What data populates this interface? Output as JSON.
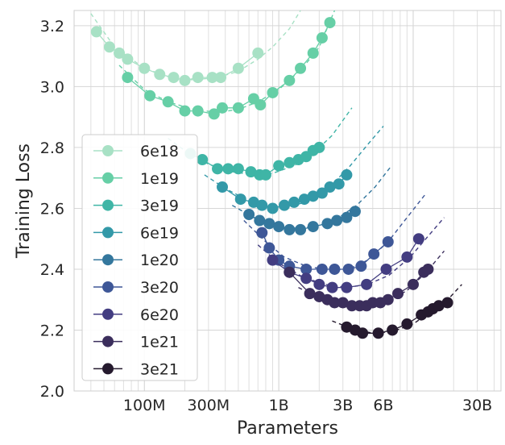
{
  "chart_data": {
    "type": "scatter",
    "xlabel": "Parameters",
    "ylabel": "Training Loss",
    "xscale": "log",
    "xlim": [
      30000000,
      45000000000
    ],
    "ylim": [
      2.0,
      3.25
    ],
    "grid": true,
    "legend_placement": "left",
    "xticks": [
      {
        "value": 100000000,
        "label": "100M"
      },
      {
        "value": 300000000,
        "label": "300M"
      },
      {
        "value": 1000000000,
        "label": "1B"
      },
      {
        "value": 3000000000,
        "label": "3B"
      },
      {
        "value": 6000000000,
        "label": "6B"
      },
      {
        "value": 30000000000,
        "label": "30B"
      }
    ],
    "yticks": [
      {
        "value": 2.0,
        "label": "2.0"
      },
      {
        "value": 2.2,
        "label": "2.2"
      },
      {
        "value": 2.4,
        "label": "2.4"
      },
      {
        "value": 2.6,
        "label": "2.6"
      },
      {
        "value": 2.8,
        "label": "2.8"
      },
      {
        "value": 3.0,
        "label": "3.0"
      },
      {
        "value": 3.2,
        "label": "3.2"
      }
    ],
    "series": [
      {
        "name": "6e18",
        "color": "#a8e1c5",
        "points": [
          [
            44,
            3.18
          ],
          [
            55,
            3.13
          ],
          [
            65,
            3.11
          ],
          [
            75,
            3.09
          ],
          [
            100,
            3.06
          ],
          [
            130,
            3.04
          ],
          [
            165,
            3.03
          ],
          [
            200,
            3.02
          ],
          [
            250,
            3.03
          ],
          [
            320,
            3.03
          ],
          [
            370,
            3.03
          ],
          [
            500,
            3.06
          ],
          [
            700,
            3.11
          ]
        ],
        "fit": [
          [
            40,
            3.24
          ],
          [
            60,
            3.13
          ],
          [
            100,
            3.06
          ],
          [
            150,
            3.033
          ],
          [
            230,
            3.022
          ],
          [
            350,
            3.03
          ],
          [
            500,
            3.05
          ],
          [
            700,
            3.09
          ],
          [
            900,
            3.13
          ],
          [
            1200,
            3.19
          ],
          [
            1450,
            3.25
          ]
        ]
      },
      {
        "name": "1e19",
        "color": "#66cfa6",
        "points": [
          [
            75,
            3.03
          ],
          [
            110,
            2.97
          ],
          [
            150,
            2.95
          ],
          [
            200,
            2.92
          ],
          [
            250,
            2.92
          ],
          [
            330,
            2.91
          ],
          [
            380,
            2.93
          ],
          [
            500,
            2.93
          ],
          [
            650,
            2.96
          ],
          [
            730,
            2.94
          ],
          [
            900,
            2.98
          ],
          [
            1200,
            3.02
          ],
          [
            1450,
            3.06
          ],
          [
            1800,
            3.11
          ],
          [
            2100,
            3.16
          ],
          [
            2400,
            3.21
          ]
        ],
        "fit": [
          [
            65,
            3.07
          ],
          [
            100,
            2.99
          ],
          [
            150,
            2.95
          ],
          [
            230,
            2.925
          ],
          [
            350,
            2.915
          ],
          [
            500,
            2.925
          ],
          [
            700,
            2.95
          ],
          [
            1000,
            2.99
          ],
          [
            1500,
            3.06
          ],
          [
            2000,
            3.13
          ],
          [
            2600,
            3.25
          ]
        ]
      },
      {
        "name": "3e19",
        "color": "#3fb5a6",
        "points": [
          [
            220,
            2.78
          ],
          [
            270,
            2.76
          ],
          [
            350,
            2.73
          ],
          [
            420,
            2.73
          ],
          [
            500,
            2.73
          ],
          [
            620,
            2.72
          ],
          [
            720,
            2.71
          ],
          [
            800,
            2.71
          ],
          [
            1000,
            2.74
          ],
          [
            1200,
            2.75
          ],
          [
            1400,
            2.76
          ],
          [
            1600,
            2.77
          ],
          [
            1800,
            2.79
          ],
          [
            2000,
            2.8
          ]
        ],
        "fit": [
          [
            150,
            2.83
          ],
          [
            200,
            2.79
          ],
          [
            300,
            2.745
          ],
          [
            450,
            2.72
          ],
          [
            650,
            2.71
          ],
          [
            900,
            2.715
          ],
          [
            1300,
            2.74
          ],
          [
            1800,
            2.78
          ],
          [
            2500,
            2.84
          ],
          [
            3500,
            2.93
          ]
        ]
      },
      {
        "name": "6e19",
        "color": "#3399a8",
        "points": [
          [
            380,
            2.67
          ],
          [
            520,
            2.63
          ],
          [
            650,
            2.62
          ],
          [
            750,
            2.61
          ],
          [
            900,
            2.6
          ],
          [
            1100,
            2.61
          ],
          [
            1300,
            2.62
          ],
          [
            1550,
            2.63
          ],
          [
            1800,
            2.64
          ],
          [
            2100,
            2.65
          ],
          [
            2400,
            2.67
          ],
          [
            2800,
            2.68
          ],
          [
            3200,
            2.71
          ]
        ],
        "fit": [
          [
            280,
            2.71
          ],
          [
            400,
            2.665
          ],
          [
            600,
            2.625
          ],
          [
            850,
            2.605
          ],
          [
            1200,
            2.605
          ],
          [
            1700,
            2.625
          ],
          [
            2400,
            2.67
          ],
          [
            3400,
            2.74
          ],
          [
            4600,
            2.81
          ],
          [
            6000,
            2.87
          ]
        ]
      },
      {
        "name": "1e20",
        "color": "#34779d",
        "points": [
          [
            600,
            2.58
          ],
          [
            720,
            2.56
          ],
          [
            850,
            2.55
          ],
          [
            1000,
            2.54
          ],
          [
            1200,
            2.53
          ],
          [
            1450,
            2.53
          ],
          [
            1800,
            2.54
          ],
          [
            2300,
            2.55
          ],
          [
            2700,
            2.56
          ],
          [
            3200,
            2.57
          ],
          [
            3700,
            2.59
          ]
        ],
        "fit": [
          [
            450,
            2.61
          ],
          [
            650,
            2.57
          ],
          [
            900,
            2.545
          ],
          [
            1300,
            2.535
          ],
          [
            1900,
            2.54
          ],
          [
            2700,
            2.565
          ],
          [
            3800,
            2.61
          ],
          [
            5200,
            2.67
          ],
          [
            6900,
            2.74
          ]
        ]
      },
      {
        "name": "3e20",
        "color": "#3e5797",
        "points": [
          [
            750,
            2.52
          ],
          [
            850,
            2.47
          ],
          [
            1000,
            2.43
          ],
          [
            1200,
            2.41
          ],
          [
            1600,
            2.4
          ],
          [
            2100,
            2.4
          ],
          [
            2600,
            2.4
          ],
          [
            3300,
            2.4
          ],
          [
            4100,
            2.41
          ],
          [
            5100,
            2.45
          ],
          [
            6500,
            2.49
          ]
        ],
        "fit": [
          [
            550,
            2.56
          ],
          [
            800,
            2.49
          ],
          [
            1100,
            2.44
          ],
          [
            1600,
            2.41
          ],
          [
            2300,
            2.398
          ],
          [
            3300,
            2.4
          ],
          [
            4600,
            2.43
          ],
          [
            6500,
            2.49
          ],
          [
            9000,
            2.57
          ],
          [
            12500,
            2.65
          ]
        ]
      },
      {
        "name": "6e20",
        "color": "#433d81",
        "points": [
          [
            900,
            2.43
          ],
          [
            1200,
            2.39
          ],
          [
            1600,
            2.37
          ],
          [
            2000,
            2.35
          ],
          [
            2500,
            2.34
          ],
          [
            3200,
            2.34
          ],
          [
            4500,
            2.35
          ],
          [
            6300,
            2.4
          ],
          [
            9000,
            2.44
          ],
          [
            11000,
            2.5
          ]
        ],
        "fit": [
          [
            700,
            2.48
          ],
          [
            1000,
            2.42
          ],
          [
            1500,
            2.375
          ],
          [
            2200,
            2.35
          ],
          [
            3200,
            2.34
          ],
          [
            4600,
            2.35
          ],
          [
            6600,
            2.38
          ],
          [
            9500,
            2.44
          ],
          [
            13000,
            2.51
          ],
          [
            17000,
            2.57
          ]
        ]
      },
      {
        "name": "1e21",
        "color": "#3b2e5c",
        "points": [
          [
            1200,
            2.39
          ],
          [
            1700,
            2.32
          ],
          [
            2000,
            2.31
          ],
          [
            2300,
            2.3
          ],
          [
            2600,
            2.29
          ],
          [
            3000,
            2.29
          ],
          [
            3500,
            2.28
          ],
          [
            4000,
            2.28
          ],
          [
            4500,
            2.28
          ],
          [
            5000,
            2.29
          ],
          [
            5700,
            2.29
          ],
          [
            6500,
            2.3
          ],
          [
            7700,
            2.32
          ],
          [
            10000,
            2.35
          ],
          [
            12000,
            2.39
          ],
          [
            12900,
            2.4
          ]
        ],
        "fit": [
          [
            1400,
            2.34
          ],
          [
            2000,
            2.305
          ],
          [
            3000,
            2.285
          ],
          [
            4500,
            2.28
          ],
          [
            6500,
            2.295
          ],
          [
            9000,
            2.33
          ],
          [
            12500,
            2.39
          ],
          [
            17000,
            2.46
          ]
        ]
      },
      {
        "name": "3e21",
        "color": "#251a2e",
        "points": [
          [
            3200,
            2.21
          ],
          [
            3700,
            2.2
          ],
          [
            4200,
            2.19
          ],
          [
            5500,
            2.19
          ],
          [
            7000,
            2.2
          ],
          [
            9000,
            2.22
          ],
          [
            11500,
            2.25
          ],
          [
            12900,
            2.26
          ],
          [
            14000,
            2.27
          ],
          [
            15500,
            2.28
          ],
          [
            18000,
            2.29
          ]
        ],
        "fit": [
          [
            2500,
            2.23
          ],
          [
            3500,
            2.205
          ],
          [
            5000,
            2.19
          ],
          [
            7000,
            2.195
          ],
          [
            10000,
            2.22
          ],
          [
            14000,
            2.265
          ],
          [
            19000,
            2.31
          ],
          [
            23000,
            2.35
          ]
        ]
      }
    ]
  }
}
